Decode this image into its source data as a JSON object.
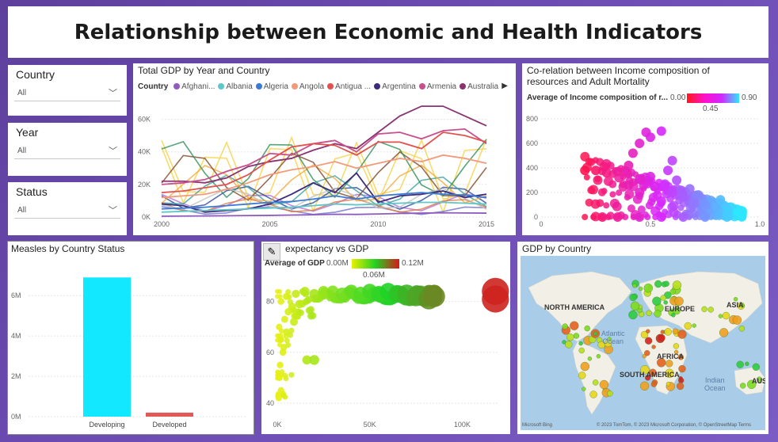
{
  "title": "Relationship between Economic and Health Indicators",
  "slicers": [
    {
      "label": "Country",
      "value": "All"
    },
    {
      "label": "Year",
      "value": "All"
    },
    {
      "label": "Status",
      "value": "All"
    }
  ],
  "gdp_line": {
    "title": "Total GDP by Year and Country",
    "legend_title": "Country",
    "legend": [
      {
        "name": "Afghani...",
        "color": "#8e5bbf"
      },
      {
        "name": "Albania",
        "color": "#5ec7c7"
      },
      {
        "name": "Algeria",
        "color": "#3b7bd4"
      },
      {
        "name": "Angola",
        "color": "#f39a7a"
      },
      {
        "name": "Antigua ...",
        "color": "#e0514f"
      },
      {
        "name": "Argentina",
        "color": "#3d2c7a"
      },
      {
        "name": "Armenia",
        "color": "#c8508e"
      },
      {
        "name": "Australia",
        "color": "#8a3370"
      }
    ],
    "more_icon": "chevron-right-icon"
  },
  "scatter_income": {
    "title_line1": "Co-relation between Income composition of",
    "title_line2": "resources and Adult Mortality",
    "legend_label": "Average of Income composition of r...",
    "legend_min": "0.00",
    "legend_mid": "0.45",
    "legend_max": "0.90"
  },
  "measles": {
    "title": "Measles by Country Status"
  },
  "life_gdp": {
    "title": "expectancy vs GDP",
    "legend_label": "Average of GDP",
    "legend_min": "0.00M",
    "legend_mid": "0.06M",
    "legend_max": "0.12M"
  },
  "map": {
    "title": "GDP by Country",
    "labels": {
      "na": "NORTH AMERICA",
      "eu": "EUROPE",
      "asia": "ASIA",
      "sa": "SOUTH AMERICA",
      "af": "AFRICA",
      "aus": "AUS",
      "atlantic1": "Atlantic",
      "atlantic2": "Ocean",
      "indian1": "Indian",
      "indian2": "Ocean"
    },
    "attribution": "© 2023 TomTom, © 2023 Microsoft Corporation, © OpenStreetMap  Terms",
    "bing": "Microsoft Bing"
  },
  "chart_data": [
    {
      "type": "line",
      "title": "Total GDP by Year and Country",
      "x": [
        2000,
        2001,
        2002,
        2003,
        2004,
        2005,
        2006,
        2007,
        2008,
        2009,
        2010,
        2011,
        2012,
        2013,
        2014,
        2015
      ],
      "xticks": [
        "2000",
        "2005",
        "2010",
        "2015"
      ],
      "yticks": [
        "0K",
        "20K",
        "40K",
        "60K"
      ],
      "ylim": [
        0,
        70000
      ],
      "series": [
        {
          "name": "Australia",
          "color": "#8a3370",
          "values": [
            22000,
            22000,
            21000,
            24000,
            31000,
            34000,
            36000,
            41000,
            45000,
            42000,
            52000,
            62000,
            68000,
            68000,
            62000,
            56000
          ]
        },
        {
          "name": "Armenia",
          "color": "#c8508e",
          "values": [
            20000,
            21000,
            23000,
            28000,
            32000,
            39000,
            38000,
            45000,
            47000,
            40000,
            51000,
            52000,
            48000,
            53000,
            54000,
            45000
          ]
        },
        {
          "name": "Antigua ...",
          "color": "#e0514f",
          "values": [
            15000,
            16000,
            18000,
            20000,
            26000,
            35000,
            43000,
            45000,
            44000,
            38000,
            46000,
            46000,
            42000,
            52000,
            50000,
            46000
          ]
        },
        {
          "name": "Angola",
          "color": "#f39a7a",
          "values": [
            12000,
            13000,
            14000,
            17000,
            21000,
            26000,
            29000,
            31000,
            34000,
            30000,
            33000,
            36000,
            34000,
            38000,
            36000,
            33000
          ]
        },
        {
          "name": "Argentina",
          "color": "#3d2c7a",
          "values": [
            8000,
            7000,
            3000,
            4000,
            5000,
            8000,
            14000,
            21000,
            15000,
            27000,
            9000,
            13000,
            14000,
            16000,
            12000,
            14000
          ]
        },
        {
          "name": "Algeria",
          "color": "#3b7bd4",
          "values": [
            5000,
            5500,
            6000,
            7000,
            8000,
            9000,
            9500,
            11000,
            13000,
            11000,
            13000,
            14000,
            15000,
            14000,
            13500,
            12000
          ]
        },
        {
          "name": "Albania",
          "color": "#5ec7c7",
          "values": [
            3000,
            3500,
            4000,
            4500,
            5000,
            5500,
            6000,
            7000,
            8000,
            7500,
            8000,
            8500,
            9000,
            9000,
            8500,
            8000
          ]
        },
        {
          "name": "Afghani...",
          "color": "#8e5bbf",
          "values": [
            500,
            600,
            700,
            800,
            900,
            1000,
            1200,
            1400,
            1700,
            1600,
            1900,
            2200,
            2400,
            2600,
            2500,
            2400
          ]
        }
      ]
    },
    {
      "type": "scatter",
      "title": "Co-relation between Income composition of resources and Adult Mortality",
      "xticks": [
        "0",
        "0.5",
        "1.0"
      ],
      "yticks": [
        "0",
        "200",
        "400",
        "600",
        "800"
      ],
      "xlim": [
        0,
        1.0
      ],
      "ylim": [
        0,
        800
      ],
      "color_by": "Average of Income composition of r...",
      "points": [
        {
          "x": 0.35,
          "y": 370
        },
        {
          "x": 0.4,
          "y": 420
        },
        {
          "x": 0.42,
          "y": 520
        },
        {
          "x": 0.45,
          "y": 600
        },
        {
          "x": 0.48,
          "y": 690
        },
        {
          "x": 0.5,
          "y": 650
        },
        {
          "x": 0.55,
          "y": 700
        },
        {
          "x": 0.6,
          "y": 460
        },
        {
          "x": 0.3,
          "y": 360
        },
        {
          "x": 0.25,
          "y": 380
        },
        {
          "x": 0.2,
          "y": 380
        },
        {
          "x": 0.46,
          "y": 300
        },
        {
          "x": 0.52,
          "y": 250
        },
        {
          "x": 0.6,
          "y": 200
        },
        {
          "x": 0.65,
          "y": 160
        },
        {
          "x": 0.7,
          "y": 120
        },
        {
          "x": 0.75,
          "y": 100
        },
        {
          "x": 0.8,
          "y": 80
        },
        {
          "x": 0.85,
          "y": 60
        },
        {
          "x": 0.9,
          "y": 40
        },
        {
          "x": 0.55,
          "y": 130
        },
        {
          "x": 0.45,
          "y": 200
        },
        {
          "x": 0.4,
          "y": 260
        },
        {
          "x": 0.5,
          "y": 330
        },
        {
          "x": 0.28,
          "y": 0
        },
        {
          "x": 0.35,
          "y": 0
        },
        {
          "x": 0.45,
          "y": 0
        },
        {
          "x": 0.55,
          "y": 0
        },
        {
          "x": 0.65,
          "y": 0
        },
        {
          "x": 0.75,
          "y": 0
        },
        {
          "x": 0.85,
          "y": 0
        },
        {
          "x": 0.62,
          "y": 300
        },
        {
          "x": 0.58,
          "y": 380
        },
        {
          "x": 0.68,
          "y": 230
        },
        {
          "x": 0.72,
          "y": 180
        },
        {
          "x": 0.82,
          "y": 140
        }
      ]
    },
    {
      "type": "bar",
      "title": "Measles by Country Status",
      "categories": [
        "Developing",
        "Developed"
      ],
      "values": [
        6900000,
        200000
      ],
      "yticks": [
        "0M",
        "2M",
        "4M",
        "6M"
      ],
      "ylim": [
        0,
        7500000
      ],
      "colors": [
        "#12e8ff",
        "#e05a5a"
      ]
    },
    {
      "type": "scatter",
      "title": "expectancy vs GDP",
      "xticks": [
        "0K",
        "50K",
        "100K"
      ],
      "yticks": [
        "40",
        "60",
        "80"
      ],
      "xlim": [
        0,
        120000
      ],
      "ylim": [
        35,
        88
      ],
      "color_by": "Average of GDP",
      "points": [
        {
          "x": 2000,
          "y": 80
        },
        {
          "x": 5000,
          "y": 82
        },
        {
          "x": 10000,
          "y": 83
        },
        {
          "x": 15000,
          "y": 84
        },
        {
          "x": 20000,
          "y": 83
        },
        {
          "x": 25000,
          "y": 84
        },
        {
          "x": 30000,
          "y": 84
        },
        {
          "x": 35000,
          "y": 83
        },
        {
          "x": 40000,
          "y": 84
        },
        {
          "x": 45000,
          "y": 83
        },
        {
          "x": 50000,
          "y": 84
        },
        {
          "x": 55000,
          "y": 83
        },
        {
          "x": 60000,
          "y": 84
        },
        {
          "x": 65000,
          "y": 83
        },
        {
          "x": 70000,
          "y": 83
        },
        {
          "x": 75000,
          "y": 82
        },
        {
          "x": 82000,
          "y": 81
        },
        {
          "x": 85000,
          "y": 82
        },
        {
          "x": 118000,
          "y": 81
        },
        {
          "x": 118000,
          "y": 84
        },
        {
          "x": 1000,
          "y": 70
        },
        {
          "x": 2000,
          "y": 65
        },
        {
          "x": 3000,
          "y": 60
        },
        {
          "x": 4000,
          "y": 73
        },
        {
          "x": 6000,
          "y": 76
        },
        {
          "x": 8000,
          "y": 78
        },
        {
          "x": 12000,
          "y": 79
        },
        {
          "x": 1500,
          "y": 55
        },
        {
          "x": 1200,
          "y": 50
        },
        {
          "x": 2000,
          "y": 45
        },
        {
          "x": 800,
          "y": 42
        },
        {
          "x": 16000,
          "y": 57
        },
        {
          "x": 20000,
          "y": 57
        },
        {
          "x": 5000,
          "y": 68
        },
        {
          "x": 9000,
          "y": 72
        },
        {
          "x": 3500,
          "y": 62
        }
      ]
    }
  ]
}
